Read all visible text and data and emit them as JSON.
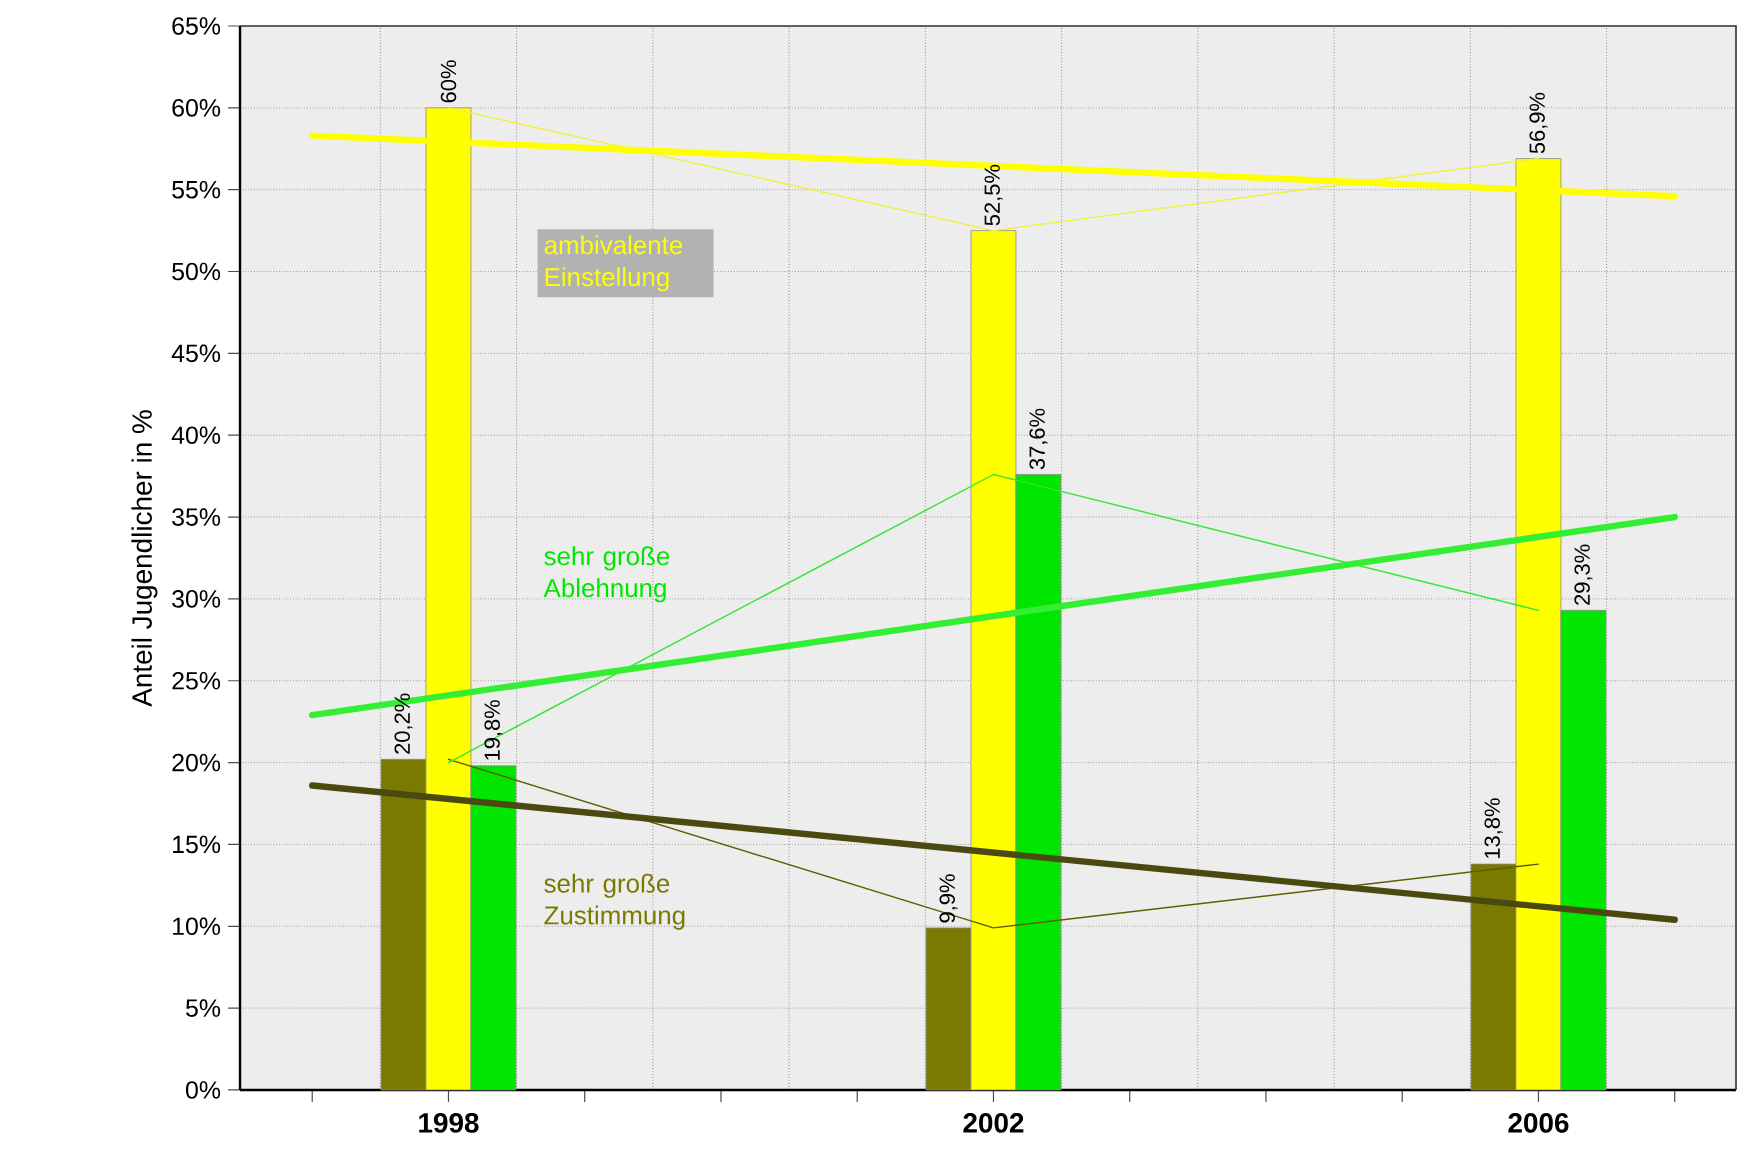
{
  "chart_data": {
    "type": "bar",
    "ylabel": "Anteil Jugendlicher in %",
    "xlim": [
      1996.47,
      2007.45
    ],
    "xticks": [
      {
        "value": 1997,
        "label": null
      },
      1998,
      {
        "value": 1999,
        "label": null
      },
      {
        "value": 2000,
        "label": null
      },
      {
        "value": 2001,
        "label": null
      },
      2002,
      {
        "value": 2003,
        "label": null
      },
      {
        "value": 2004,
        "label": null
      },
      {
        "value": 2005,
        "label": null
      },
      2006,
      {
        "value": 2007,
        "label": null
      }
    ],
    "ylim": [
      0,
      65
    ],
    "yticks": [
      {
        "value": 0,
        "label": "0%"
      },
      {
        "value": 5,
        "label": "5%"
      },
      {
        "value": 10,
        "label": "10%"
      },
      {
        "value": 15,
        "label": "15%"
      },
      {
        "value": 20,
        "label": "20%"
      },
      {
        "value": 25,
        "label": "25%"
      },
      {
        "value": 30,
        "label": "30%"
      },
      {
        "value": 35,
        "label": "35%"
      },
      {
        "value": 40,
        "label": "40%"
      },
      {
        "value": 45,
        "label": "45%"
      },
      {
        "value": 50,
        "label": "50%"
      },
      {
        "value": 55,
        "label": "55%"
      },
      {
        "value": 60,
        "label": "60%"
      },
      {
        "value": 65,
        "label": "65%"
      }
    ],
    "grid": true,
    "series": [
      {
        "name": "sehr große Zustimmung",
        "color": "#7a7a00",
        "x": [
          1998,
          2002,
          2006
        ],
        "values": [
          20.2,
          9.9,
          13.8
        ],
        "value_labels": [
          "20,2%",
          "9,9%",
          "13,8%"
        ]
      },
      {
        "name": "ambivalente Einstellung",
        "color": "#ffff00",
        "x": [
          1998,
          2002,
          2006
        ],
        "values": [
          60,
          52.5,
          56.9
        ],
        "value_labels": [
          "60%",
          "52,5%",
          "56,9%"
        ]
      },
      {
        "name": "sehr große Ablehnung",
        "color": "#00e600",
        "x": [
          1998,
          2002,
          2006
        ],
        "values": [
          19.8,
          37.6,
          29.3
        ],
        "value_labels": [
          "19,8%",
          "37,6%",
          "29,3%"
        ]
      },
      {
        "type": "line",
        "color": "#5e5e00",
        "x": [
          1998,
          2002,
          2006
        ],
        "values": [
          20.2,
          9.9,
          13.8
        ]
      },
      {
        "type": "line",
        "color": "#f0f040",
        "x": [
          1998,
          2002,
          2006
        ],
        "values": [
          60,
          52.5,
          56.9
        ]
      },
      {
        "type": "line",
        "color": "#33e633",
        "x": [
          1998,
          2002,
          2006
        ],
        "values": [
          20,
          37.6,
          29.3
        ]
      },
      {
        "type": "line",
        "color": "#ffff00",
        "x": [
          1997,
          2007
        ],
        "values": [
          58.3,
          54.6
        ]
      },
      {
        "type": "line",
        "color": "#33ee33",
        "x": [
          1997,
          2007
        ],
        "values": [
          22.9,
          35.0
        ]
      },
      {
        "type": "line",
        "color": "#4a4a10",
        "x": [
          1997,
          2007
        ],
        "values": [
          18.6,
          10.4
        ]
      }
    ]
  }
}
